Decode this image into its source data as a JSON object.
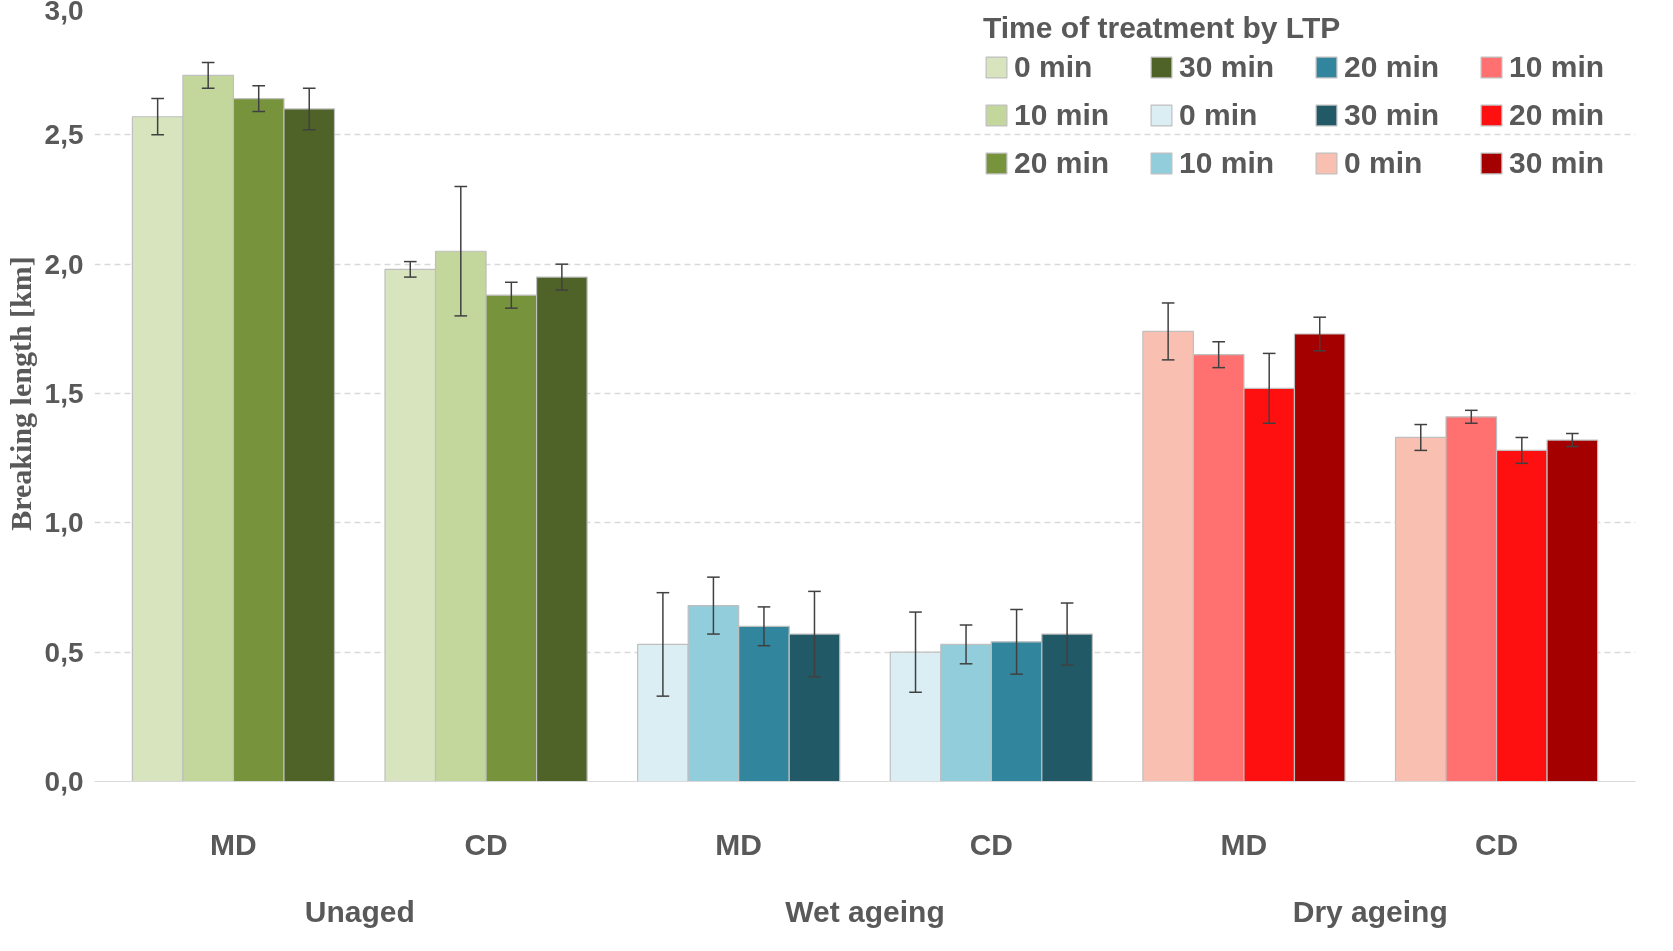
{
  "chart_data": {
    "type": "bar",
    "ylabel": "Breaking length [km]",
    "legend_title": "Time of treatment by LTP",
    "legend": "top right",
    "grid": "y",
    "categories": [
      "MD",
      "CD",
      "MD",
      "CD",
      "MD",
      "CD"
    ],
    "annotations": [
      "Unaged",
      "Wet ageing",
      "Dry ageing"
    ],
    "ylim": [
      0,
      3
    ],
    "yticks": [
      {
        "value": 0,
        "label": "0,0"
      },
      {
        "value": 0.5,
        "label": "0,5"
      },
      {
        "value": 1,
        "label": "1,0"
      },
      {
        "value": 1.5,
        "label": "1,5"
      },
      {
        "value": 2,
        "label": "2,0"
      },
      {
        "value": 2.5,
        "label": "2,5"
      },
      {
        "value": 3,
        "label": "3,0"
      }
    ],
    "series": [
      {
        "name": "0 min",
        "color": "#d7e4bd",
        "values": [
          2.57,
          1.98,
          null,
          null,
          null,
          null
        ],
        "errors": [
          0.07,
          0.03,
          null,
          null,
          null,
          null
        ]
      },
      {
        "name": "10 min",
        "color": "#c3d69b",
        "values": [
          2.73,
          2.05,
          null,
          null,
          null,
          null
        ],
        "errors": [
          0.05,
          0.25,
          null,
          null,
          null,
          null
        ]
      },
      {
        "name": "20 min",
        "color": "#77933c",
        "values": [
          2.64,
          1.88,
          null,
          null,
          null,
          null
        ],
        "errors": [
          0.05,
          0.05,
          null,
          null,
          null,
          null
        ]
      },
      {
        "name": "30 min",
        "color": "#4f6228",
        "values": [
          2.6,
          1.95,
          null,
          null,
          null,
          null
        ],
        "errors": [
          0.08,
          0.05,
          null,
          null,
          null,
          null
        ]
      },
      {
        "name": "0 min",
        "color": "#dbeef4",
        "values": [
          null,
          null,
          0.53,
          0.5,
          null,
          null
        ],
        "errors": [
          null,
          null,
          0.2,
          0.155,
          null,
          null
        ]
      },
      {
        "name": "10 min",
        "color": "#92cddc",
        "values": [
          null,
          null,
          0.68,
          0.53,
          null,
          null
        ],
        "errors": [
          null,
          null,
          0.11,
          0.075,
          null,
          null
        ]
      },
      {
        "name": "20 min",
        "color": "#31859c",
        "values": [
          null,
          null,
          0.6,
          0.54,
          null,
          null
        ],
        "errors": [
          null,
          null,
          0.075,
          0.125,
          null,
          null
        ]
      },
      {
        "name": "30 min",
        "color": "#215967",
        "values": [
          null,
          null,
          0.57,
          0.57,
          null,
          null
        ],
        "errors": [
          null,
          null,
          0.165,
          0.12,
          null,
          null
        ]
      },
      {
        "name": "0 min",
        "color": "#f9c0b2",
        "values": [
          null,
          null,
          null,
          null,
          1.74,
          1.33
        ],
        "errors": [
          null,
          null,
          null,
          null,
          0.11,
          0.05
        ]
      },
      {
        "name": "10 min",
        "color": "#ff7070",
        "values": [
          null,
          null,
          null,
          null,
          1.65,
          1.41
        ],
        "errors": [
          null,
          null,
          null,
          null,
          0.05,
          0.025
        ]
      },
      {
        "name": "20 min",
        "color": "#ff1010",
        "values": [
          null,
          null,
          null,
          null,
          1.52,
          1.28
        ],
        "errors": [
          null,
          null,
          null,
          null,
          0.135,
          0.05
        ]
      },
      {
        "name": "30 min",
        "color": "#a50000",
        "values": [
          null,
          null,
          null,
          null,
          1.73,
          1.32
        ],
        "errors": [
          null,
          null,
          null,
          null,
          0.065,
          0.025
        ]
      }
    ]
  }
}
